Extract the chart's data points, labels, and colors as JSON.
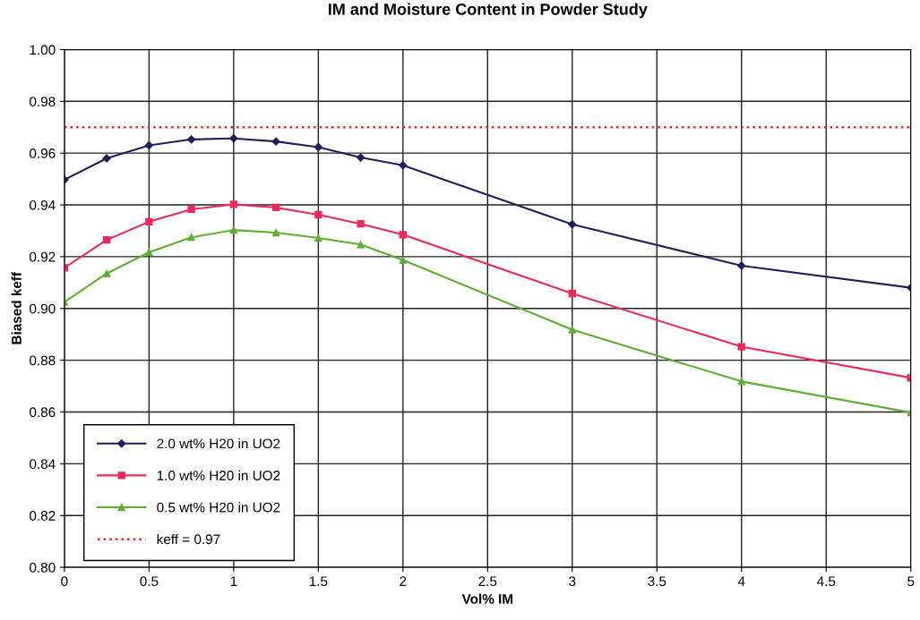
{
  "chart_data": {
    "type": "line",
    "title": "IM and Moisture Content in Powder Study",
    "xlabel": "Vol% IM",
    "ylabel": "Biased keff",
    "x": [
      0,
      0.25,
      0.5,
      0.75,
      1,
      1.25,
      1.5,
      1.75,
      2,
      3,
      4,
      5
    ],
    "series": [
      {
        "name": "2.0 wt% H20 in UO2",
        "color": "#1f1f5f",
        "marker": "diamond",
        "values": [
          0.9497,
          0.958,
          0.963,
          0.9653,
          0.9657,
          0.9645,
          0.9623,
          0.9583,
          0.9553,
          0.9325,
          0.9165,
          0.908
        ]
      },
      {
        "name": "1.0 wt% H20 in UO2",
        "color": "#f0285a",
        "marker": "square",
        "values": [
          0.9157,
          0.9265,
          0.9335,
          0.9383,
          0.9402,
          0.939,
          0.9362,
          0.9327,
          0.9285,
          0.9058,
          0.8852,
          0.8732
        ]
      },
      {
        "name": "0.5 wt% H20 in UO2",
        "color": "#5cb030",
        "marker": "triangle",
        "values": [
          0.9025,
          0.9135,
          0.9217,
          0.9275,
          0.9303,
          0.9293,
          0.9272,
          0.9247,
          0.9187,
          0.8918,
          0.8718,
          0.8598
        ]
      }
    ],
    "ref_lines": [
      {
        "axis": "y",
        "value": 0.97,
        "label": "keff = 0.97",
        "color": "#ff2020",
        "line_style": "dotted"
      }
    ],
    "xlim": [
      0,
      5
    ],
    "xticks": [
      0,
      0.5,
      1,
      1.5,
      2,
      2.5,
      3,
      3.5,
      4,
      4.5,
      5
    ],
    "ylim": [
      0.8,
      1.0
    ],
    "yticks": [
      {
        "value": 0.8,
        "label": "0.80"
      },
      {
        "value": 0.82,
        "label": "0.82"
      },
      {
        "value": 0.84,
        "label": "0.84"
      },
      {
        "value": 0.86,
        "label": "0.86"
      },
      {
        "value": 0.88,
        "label": "0.88"
      },
      {
        "value": 0.9,
        "label": "0.90"
      },
      {
        "value": 0.92,
        "label": "0.92"
      },
      {
        "value": 0.94,
        "label": "0.94"
      },
      {
        "value": 0.96,
        "label": "0.96"
      },
      {
        "value": 0.98,
        "label": "0.98"
      },
      {
        "value": 1.0,
        "label": "1.00"
      }
    ],
    "grid": true,
    "legend": "bottom left"
  }
}
